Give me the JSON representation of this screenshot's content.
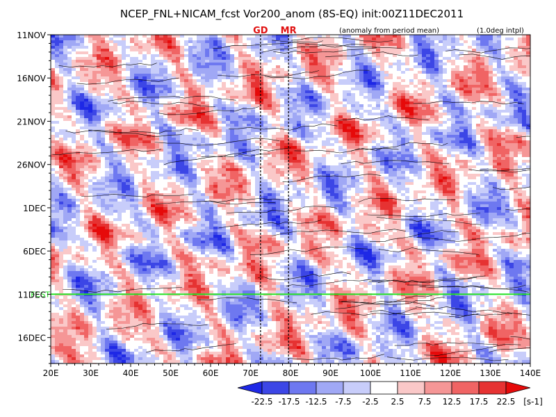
{
  "chart_data": {
    "type": "heatmap",
    "title": "NCEP_FNL+NICAM_fcst Vor200_anom (8S-EQ) init:00Z11DEC2011",
    "subtitle_left": "(anomaly from period mean)",
    "subtitle_right": "(1.0deg intpl)",
    "xlabel": "",
    "ylabel": "",
    "x_ticks": [
      "20E",
      "30E",
      "40E",
      "50E",
      "60E",
      "70E",
      "80E",
      "90E",
      "100E",
      "110E",
      "120E",
      "130E",
      "140E"
    ],
    "x_range": [
      20,
      140
    ],
    "y_ticks": [
      "11NOV",
      "16NOV",
      "21NOV",
      "26NOV",
      "1DEC",
      "6DEC",
      "11DEC",
      "16DEC"
    ],
    "y_range": [
      "11NOV2011",
      "19DEC2011"
    ],
    "y_direction": "time increasing downward",
    "colorbar": {
      "levels": [
        "-22.5",
        "-17.5",
        "-12.5",
        "-7.5",
        "-2.5",
        "2.5",
        "7.5",
        "12.5",
        "17.5",
        "22.5"
      ],
      "unit": "[s-1]",
      "colors": [
        "#1e28e6",
        "#3c46e6",
        "#6e78f0",
        "#a0a8f5",
        "#c8cdfa",
        "#ffffff",
        "#fac8c8",
        "#f59696",
        "#f06464",
        "#e63232",
        "#e60a0a"
      ]
    },
    "markers": [
      {
        "label": "GD",
        "lon": 72.5
      },
      {
        "label": "MR",
        "lon": 79.5
      }
    ],
    "init_line": {
      "label": "FCST",
      "date": "11DEC",
      "color": "#22e022"
    }
  }
}
